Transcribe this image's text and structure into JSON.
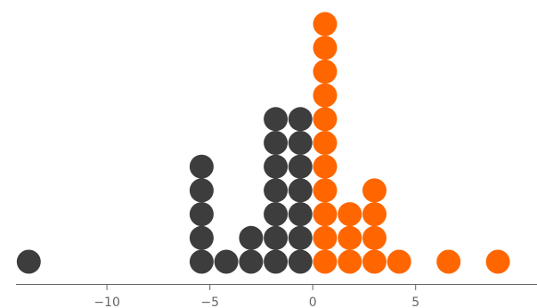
{
  "chart_data": {
    "type": "scatter",
    "subtype": "dot-plot",
    "title": "",
    "xlabel": "",
    "ylabel": "",
    "xlim": [
      -15.2,
      10.9
    ],
    "x_ticks": [
      -10,
      -5,
      0,
      5
    ],
    "x_tick_labels": [
      "−10",
      "−5",
      "0",
      "5"
    ],
    "grid": false,
    "legend": "none",
    "series": [
      {
        "color": "#3d3d3d",
        "points": [
          {
            "x": -13.8,
            "count": 1
          },
          {
            "x": -5.4,
            "count": 5
          },
          {
            "x": -4.2,
            "count": 1
          },
          {
            "x": -3.0,
            "count": 2
          },
          {
            "x": -1.8,
            "count": 7
          },
          {
            "x": -0.6,
            "count": 7
          }
        ]
      },
      {
        "color": "#ff6600",
        "points": [
          {
            "x": 0.6,
            "count": 11
          },
          {
            "x": 1.8,
            "count": 3
          },
          {
            "x": 3.0,
            "count": 4
          },
          {
            "x": 4.2,
            "count": 1
          },
          {
            "x": 6.6,
            "count": 1
          },
          {
            "x": 9.0,
            "count": 1
          }
        ]
      }
    ]
  }
}
